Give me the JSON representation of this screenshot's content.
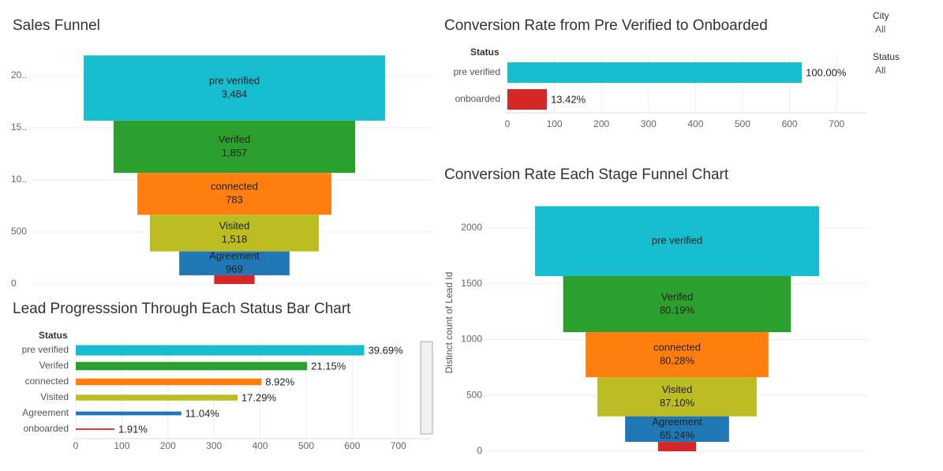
{
  "chart_data": [
    {
      "type": "funnel",
      "title": "Sales Funnel",
      "categories": [
        "pre verified",
        "Verifed",
        "connected",
        "Visited",
        "Agreement",
        null
      ],
      "colors": [
        "#17becf",
        "#2ca02c",
        "#ff7f0e",
        "#bcbd22",
        "#1f77b4",
        "#d62728"
      ],
      "values": [
        626,
        502,
        403,
        351,
        229,
        84
      ],
      "counts": [
        3484,
        1857,
        783,
        1518,
        969,
        null
      ],
      "count_labels": [
        "3,484",
        "1,857",
        "783",
        "1,518",
        "969",
        null
      ],
      "ylim": [
        0,
        2250
      ],
      "yticks": [
        0,
        500,
        {
          "value": 1000,
          "label": "10.."
        },
        {
          "value": 1500,
          "label": "15.."
        },
        {
          "value": 2000,
          "label": "20.."
        }
      ],
      "grid": true
    },
    {
      "type": "hbar",
      "title": "Conversion Rate from Pre Verified to Onboarded",
      "category_header": "Status",
      "categories": [
        "pre verified",
        "onboarded"
      ],
      "colors": [
        "#17becf",
        "#d62728"
      ],
      "values": [
        626,
        84
      ],
      "percents": [
        100.0,
        13.42
      ],
      "percent_labels": [
        "100.00%",
        "13.42%"
      ],
      "xlim": [
        0,
        765
      ],
      "xticks": [
        0,
        100,
        200,
        300,
        400,
        500,
        600,
        700
      ],
      "grid": true
    },
    {
      "type": "funnel",
      "title": "Conversion Rate Each Stage Funnel Chart",
      "y_label": "Distinct count of Lead Id",
      "categories": [
        "pre verified",
        "Verifed",
        "connected",
        "Visited",
        "Agreement",
        null
      ],
      "colors": [
        "#17becf",
        "#2ca02c",
        "#ff7f0e",
        "#bcbd22",
        "#1f77b4",
        "#d62728"
      ],
      "values": [
        626,
        502,
        403,
        351,
        229,
        84
      ],
      "percents": [
        null,
        80.19,
        80.28,
        87.1,
        65.24,
        null
      ],
      "percent_labels": [
        null,
        "80.19%",
        "80.28%",
        "87.10%",
        "65.24%",
        null
      ],
      "ylim": [
        0,
        2300
      ],
      "yticks": [
        0,
        500,
        1000,
        1500,
        2000
      ],
      "grid": true
    },
    {
      "type": "hbar",
      "title": "Lead Progresssion Through Each Status Bar Chart",
      "category_header": "Status",
      "categories": [
        "pre verified",
        "Verifed",
        "connected",
        "Visited",
        "Agreement",
        "onboarded"
      ],
      "colors": [
        "#17becf",
        "#2ca02c",
        "#ff7f0e",
        "#bcbd22",
        "#1f77b4",
        "#d62728"
      ],
      "values": [
        626,
        502,
        403,
        351,
        229,
        84
      ],
      "percents": [
        39.69,
        21.15,
        8.92,
        17.29,
        11.04,
        1.91
      ],
      "percent_labels": [
        "39.69%",
        "21.15%",
        "8.92%",
        "17.29%",
        "11.04%",
        "1.91%"
      ],
      "xlim": [
        0,
        770
      ],
      "xticks": [
        0,
        100,
        200,
        300,
        400,
        500,
        600,
        700
      ],
      "grid": true
    }
  ],
  "filters": [
    {
      "title": "City",
      "value": "All"
    },
    {
      "title": "Status",
      "value": "All"
    }
  ]
}
